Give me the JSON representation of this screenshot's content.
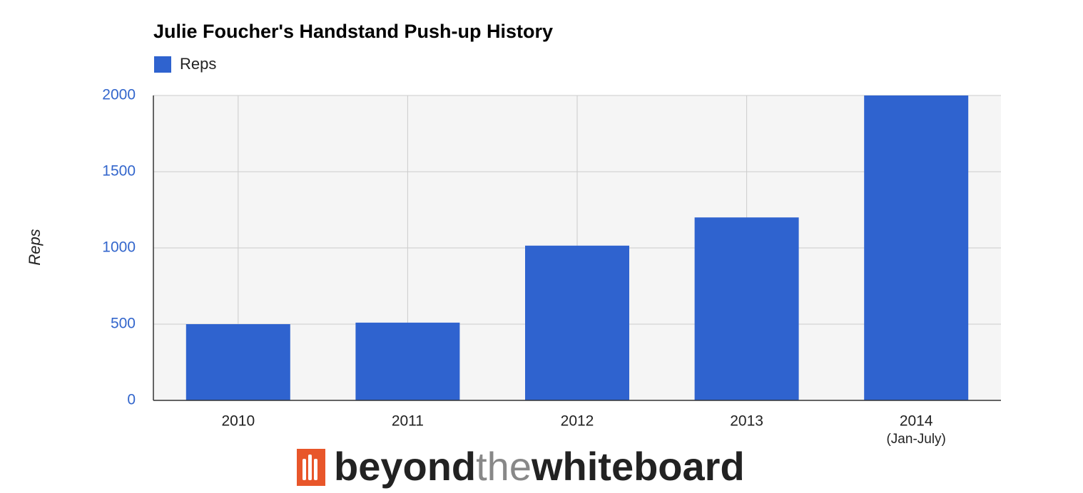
{
  "chart_data": {
    "type": "bar",
    "title": "Julie Foucher's Handstand Push-up History",
    "y_label": "Reps",
    "categories": [
      "2010",
      "2011",
      "2012",
      "2013",
      "2014"
    ],
    "category_notes": [
      null,
      null,
      null,
      null,
      "(Jan-July)"
    ],
    "series": [
      {
        "name": "Reps",
        "color": "#2f63cf",
        "values": [
          500,
          510,
          1015,
          1200,
          2000
        ]
      }
    ],
    "ylim": [
      0,
      2000
    ],
    "yticks": [
      0,
      500,
      1000,
      1500,
      2000
    ],
    "grid": true,
    "legend": "top-left",
    "watermark": [
      "beyond",
      "the",
      "whiteboard"
    ]
  }
}
